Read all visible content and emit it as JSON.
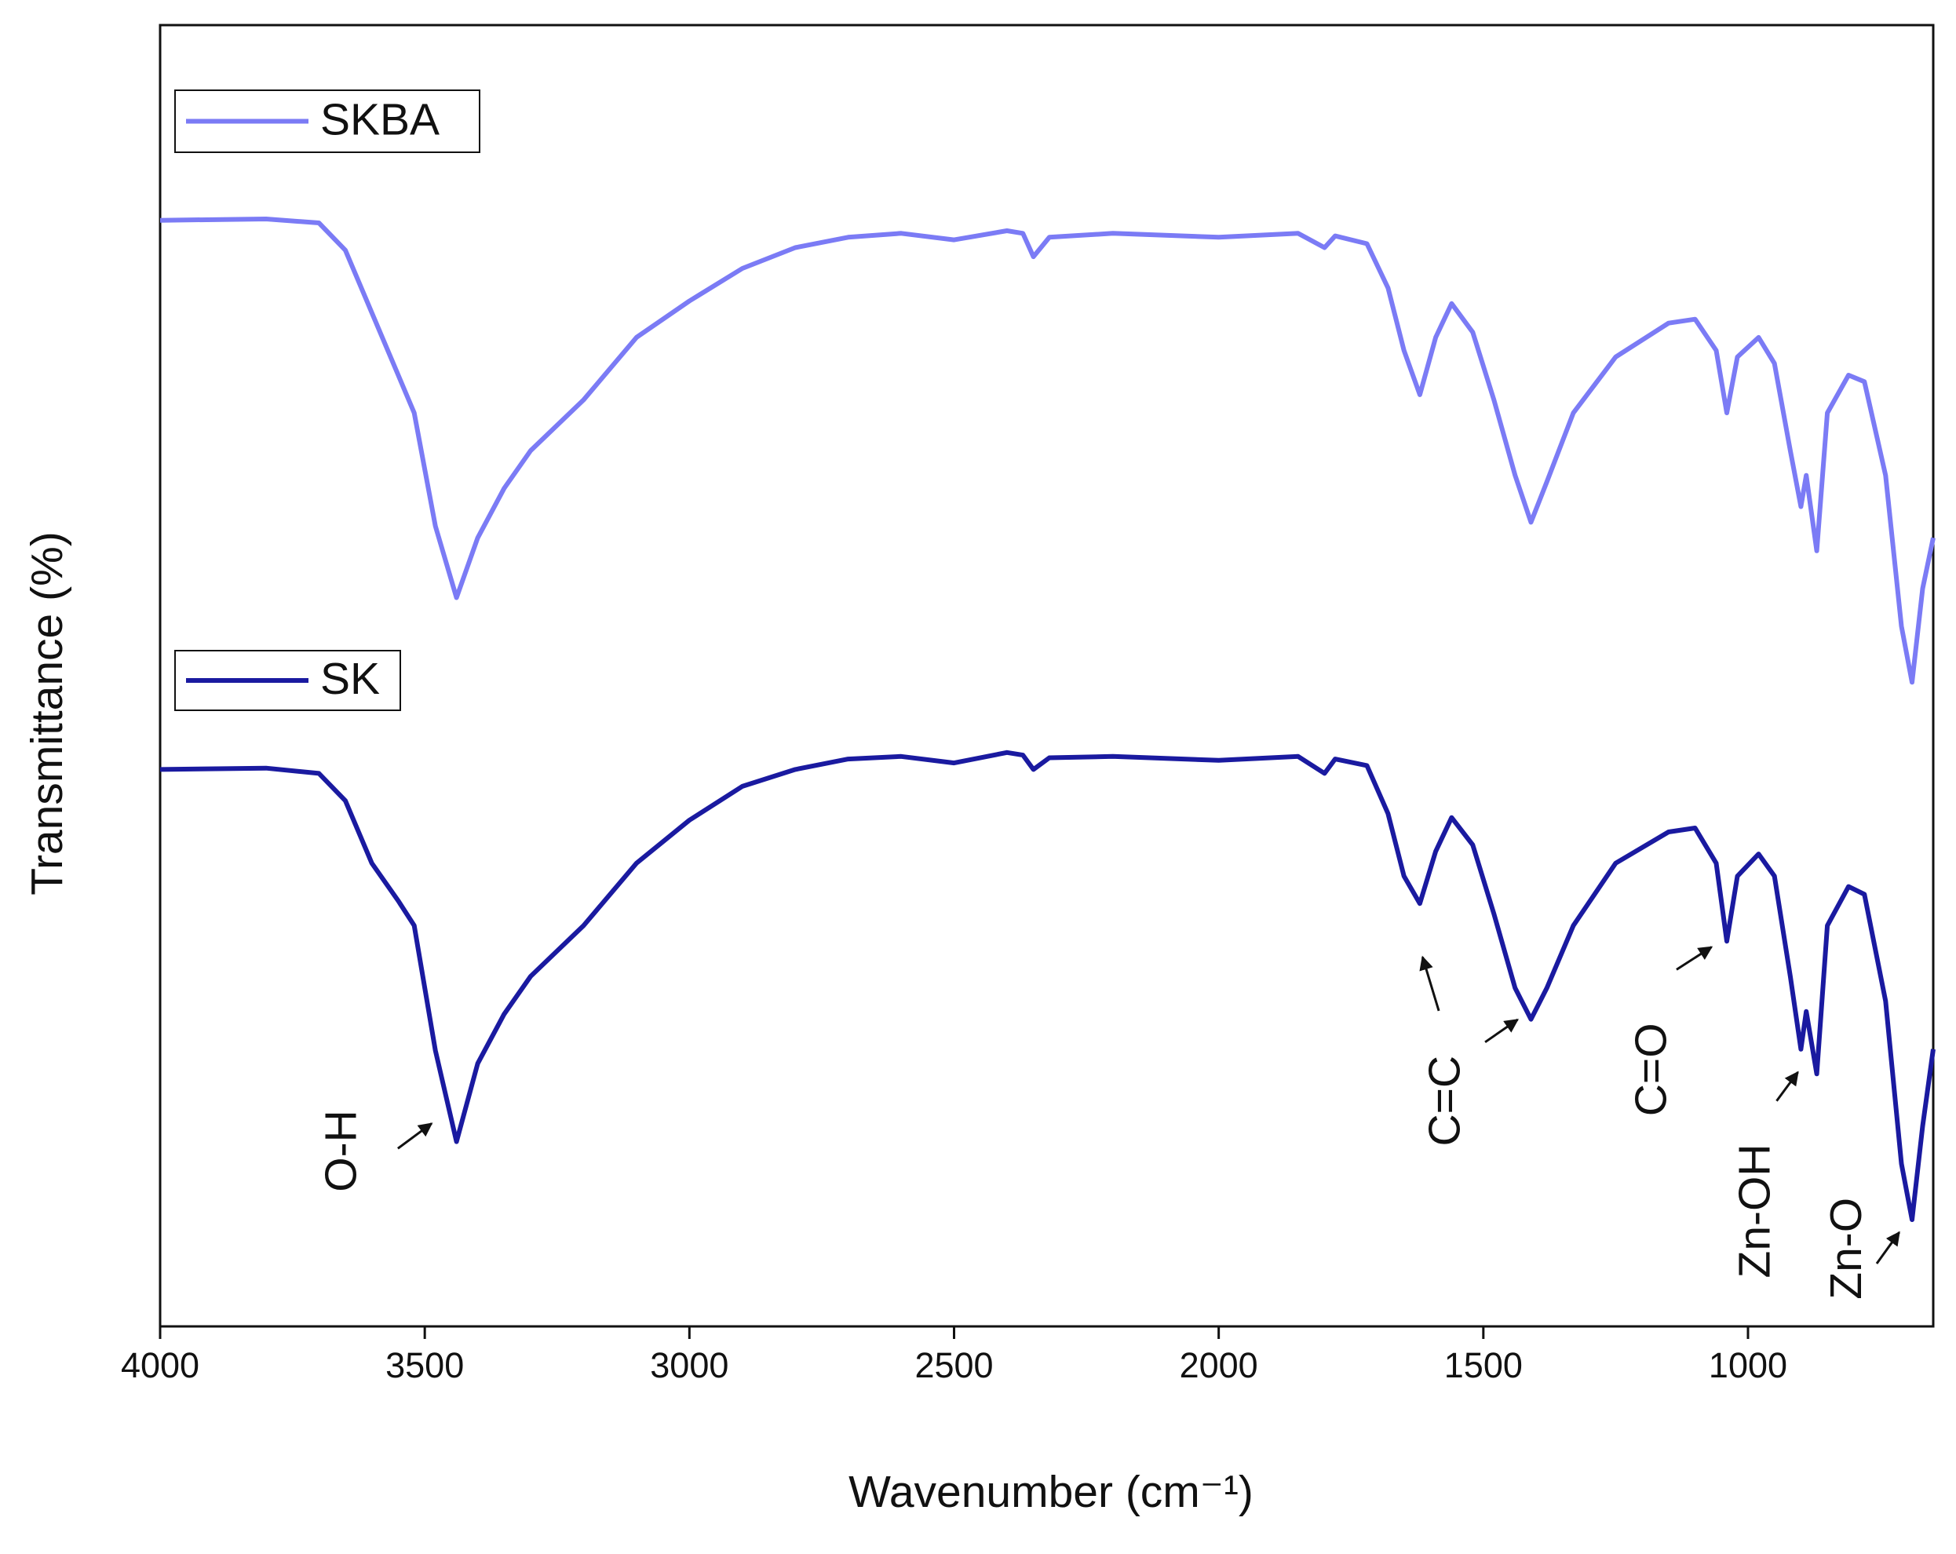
{
  "chart_data": {
    "type": "line",
    "x_label": "Wavenumber (cm⁻¹)",
    "y_label": "Transmittance (%)",
    "xlim": [
      4000,
      650
    ],
    "ylim": [
      0,
      100
    ],
    "xticks": [
      4000,
      3500,
      3000,
      2500,
      2000,
      1500,
      1000
    ],
    "x": [
      4000,
      3800,
      3700,
      3650,
      3600,
      3550,
      3520,
      3480,
      3440,
      3400,
      3350,
      3300,
      3200,
      3100,
      3000,
      2900,
      2800,
      2700,
      2600,
      2500,
      2400,
      2370,
      2350,
      2320,
      2200,
      2000,
      1850,
      1800,
      1780,
      1720,
      1680,
      1650,
      1620,
      1590,
      1560,
      1520,
      1480,
      1440,
      1410,
      1380,
      1330,
      1250,
      1150,
      1100,
      1060,
      1040,
      1020,
      980,
      950,
      920,
      900,
      890,
      870,
      850,
      810,
      780,
      740,
      710,
      690,
      670,
      650
    ],
    "series": [
      {
        "name": "SKBA",
        "color": "#7b7bf5",
        "values": [
          85.0,
          85.1,
          84.8,
          82.7,
          77.9,
          73.1,
          70.2,
          61.5,
          56.0,
          60.6,
          64.4,
          67.3,
          71.2,
          76.0,
          78.8,
          81.3,
          82.9,
          83.7,
          84.0,
          83.5,
          84.2,
          84.0,
          82.2,
          83.7,
          84.0,
          83.7,
          84.0,
          82.9,
          83.8,
          83.2,
          79.8,
          75.0,
          71.6,
          76.0,
          78.6,
          76.4,
          71.2,
          65.4,
          61.8,
          64.9,
          70.2,
          74.5,
          77.1,
          77.4,
          75.0,
          70.2,
          74.5,
          76.0,
          74.0,
          67.3,
          63.0,
          65.4,
          59.6,
          70.2,
          73.1,
          72.6,
          65.4,
          53.8,
          49.5,
          56.7,
          60.6
        ]
      },
      {
        "name": "SK",
        "color": "#1a1aa0",
        "values": [
          42.8,
          42.9,
          42.5,
          40.4,
          35.6,
          32.7,
          30.8,
          21.2,
          14.2,
          20.2,
          24.0,
          26.9,
          30.8,
          35.6,
          38.9,
          41.5,
          42.8,
          43.6,
          43.8,
          43.3,
          44.1,
          43.9,
          42.8,
          43.7,
          43.8,
          43.5,
          43.8,
          42.5,
          43.6,
          43.1,
          39.4,
          34.6,
          32.5,
          36.5,
          39.1,
          37.0,
          31.7,
          26.0,
          23.6,
          26.0,
          30.8,
          35.6,
          38.0,
          38.3,
          35.6,
          29.6,
          34.6,
          36.3,
          34.6,
          26.9,
          21.3,
          24.2,
          19.4,
          30.8,
          33.8,
          33.2,
          25.0,
          12.5,
          8.2,
          15.4,
          21.3
        ]
      }
    ],
    "annotations": [
      "O-H",
      "C=C",
      "C=O",
      "Zn-OH",
      "Zn-O"
    ]
  }
}
